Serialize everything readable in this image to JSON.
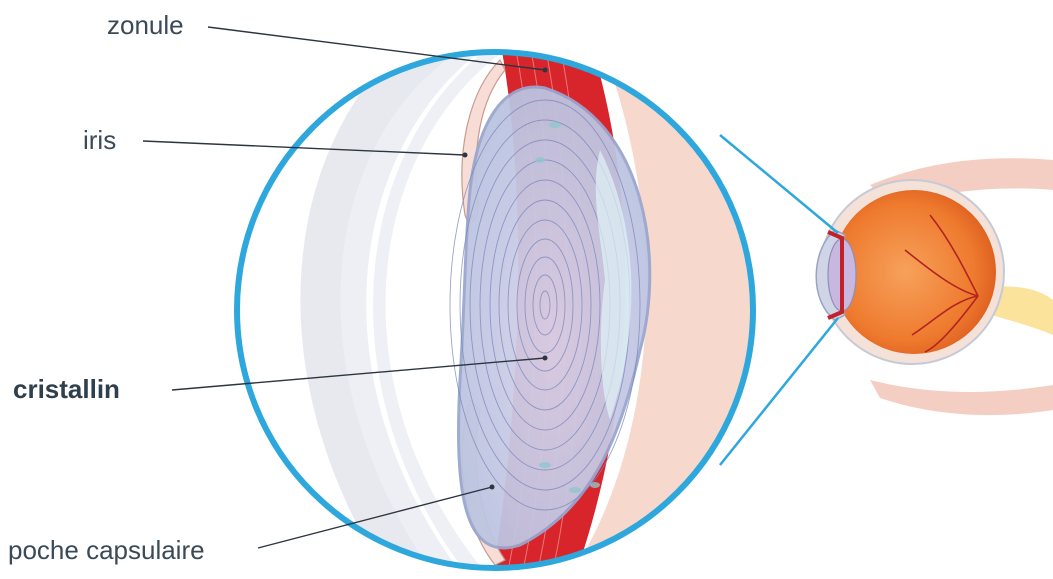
{
  "labels": {
    "zonule": "zonule",
    "iris": "iris",
    "cristallin": "cristallin",
    "poche_capsulaire": "poche capsulaire"
  },
  "colors": {
    "circle_outline": "#2ea7dd",
    "zonule_muscle": "#d8242b",
    "lens_fill": "#c9cfe6",
    "lens_lines": "#7a86b8",
    "sclera": "#f6d9cc",
    "retina": "#f08a3c",
    "text": "#3a4a57",
    "leader_line": "#2b3640"
  }
}
